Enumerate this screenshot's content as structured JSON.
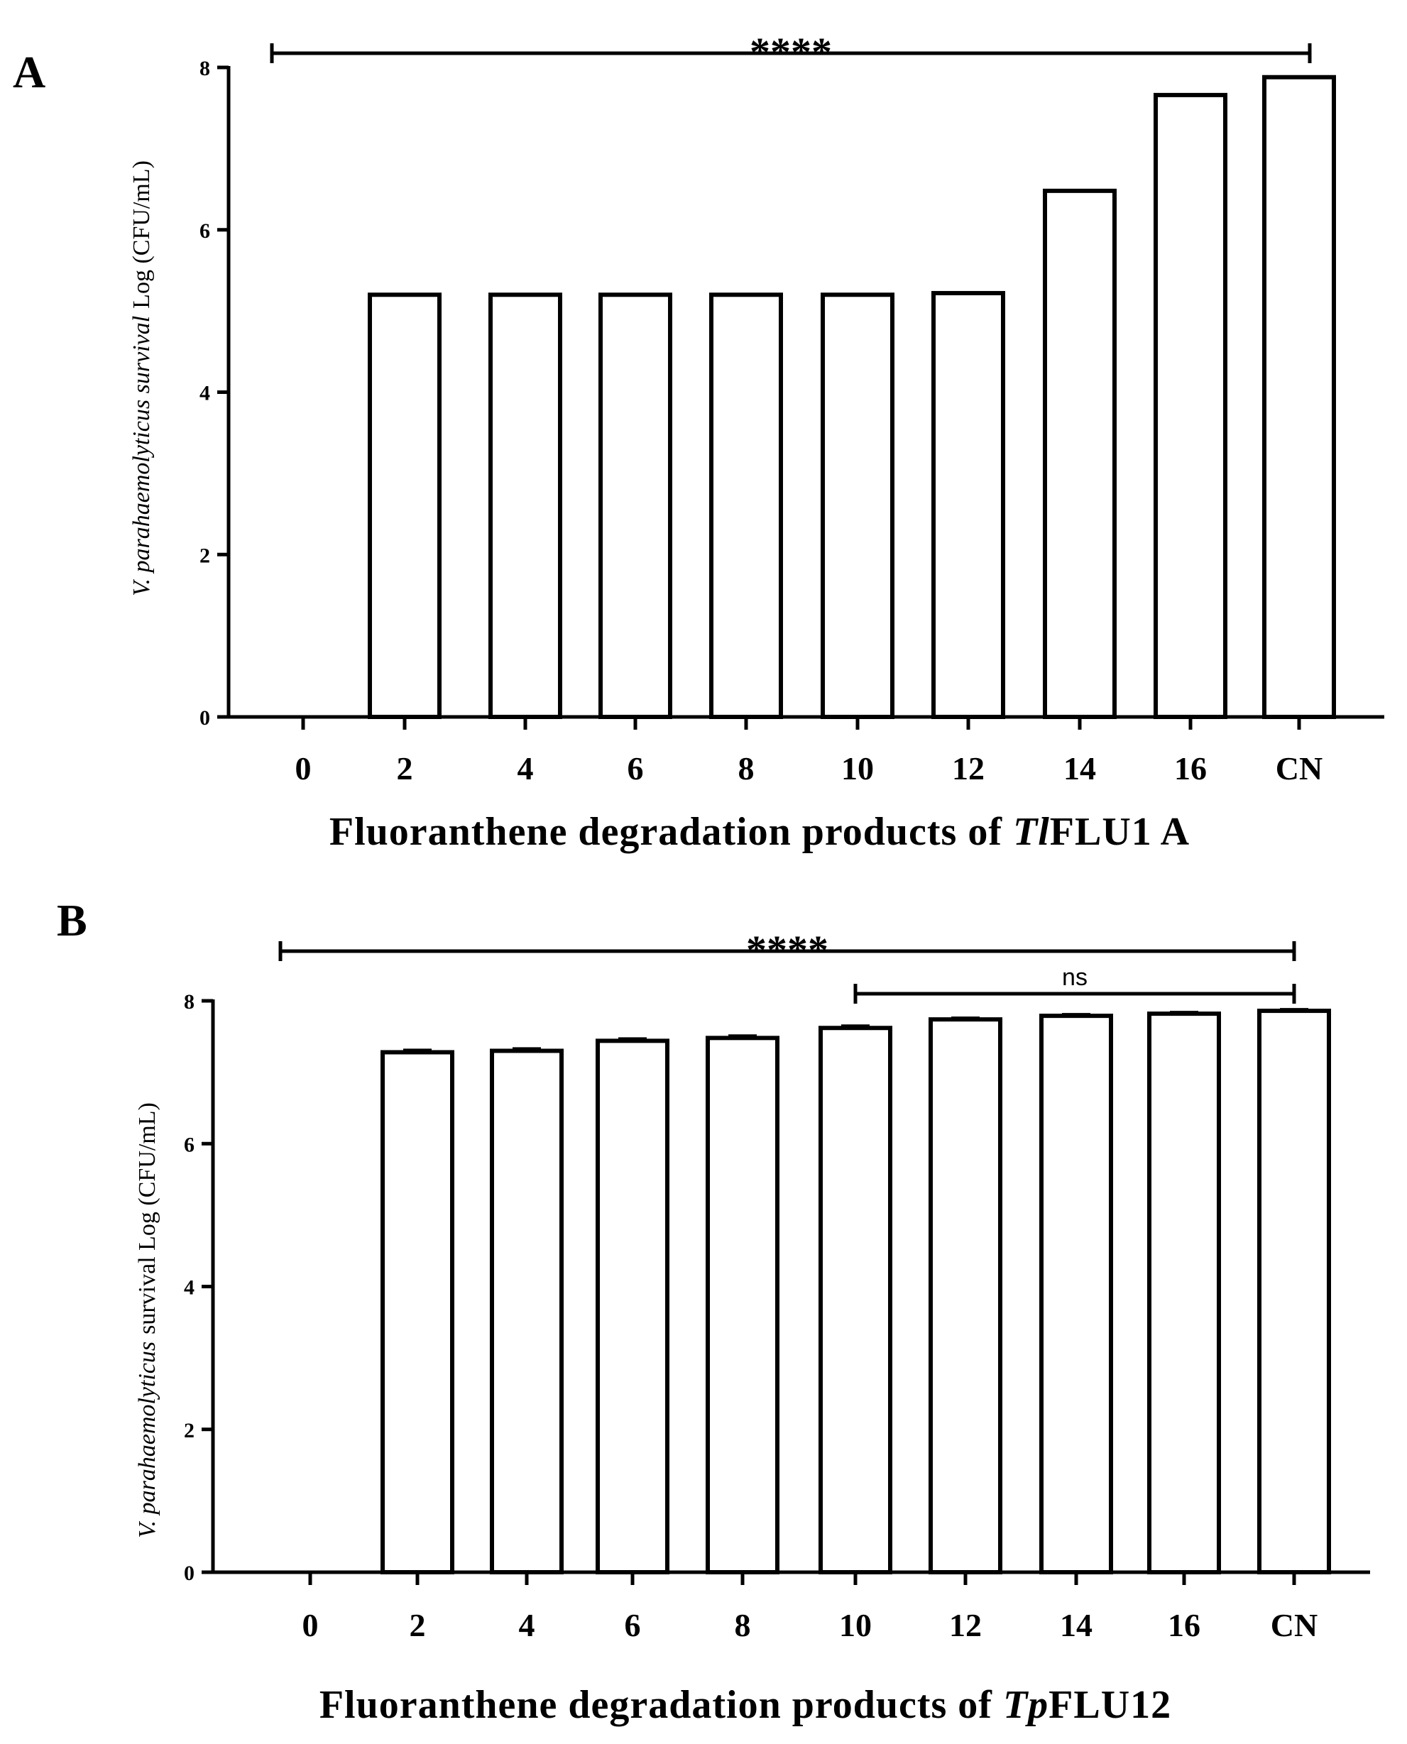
{
  "chart_data": [
    {
      "panel": "A",
      "type": "bar",
      "categories": [
        "0",
        "2",
        "4",
        "6",
        "8",
        "10",
        "12",
        "14",
        "16",
        "CN"
      ],
      "values": [
        0,
        5.2,
        5.2,
        5.2,
        5.2,
        5.2,
        5.22,
        6.48,
        7.66,
        7.88
      ],
      "errors": [
        0,
        0,
        0,
        0,
        0,
        0,
        0,
        0,
        0,
        0
      ],
      "ylim": [
        0,
        8
      ],
      "yticks": [
        "0",
        "2",
        "4",
        "6",
        "8"
      ],
      "ylabel_italic": "V. parahaemolyticus survival",
      "ylabel_rest": "Log (CFU/mL)",
      "xlabel_prefix": "Fluoranthene degradation products of ",
      "xlabel_italic": "Tl",
      "xlabel_suffix": "FLU1 A",
      "significance": [
        {
          "from": "0",
          "to": "CN",
          "label": "****"
        }
      ]
    },
    {
      "panel": "B",
      "type": "bar",
      "categories": [
        "0",
        "2",
        "4",
        "6",
        "8",
        "10",
        "12",
        "14",
        "16",
        "CN"
      ],
      "values": [
        0,
        7.28,
        7.3,
        7.44,
        7.48,
        7.62,
        7.74,
        7.79,
        7.82,
        7.86
      ],
      "errors": [
        0,
        0.03,
        0.03,
        0.03,
        0.03,
        0.03,
        0.02,
        0.02,
        0.02,
        0.02
      ],
      "ylim": [
        0,
        8
      ],
      "yticks": [
        "0",
        "2",
        "4",
        "6",
        "8"
      ],
      "ylabel_italic": "V. parahaemolyticus",
      "ylabel_rest": "survival Log (CFU/mL)",
      "xlabel_prefix": "Fluoranthene degradation products of ",
      "xlabel_italic": "Tp",
      "xlabel_suffix": "FLU12",
      "significance": [
        {
          "from": "0",
          "to": "CN",
          "label": "****"
        },
        {
          "from": "10",
          "to": "CN",
          "label": "ns"
        }
      ]
    }
  ]
}
